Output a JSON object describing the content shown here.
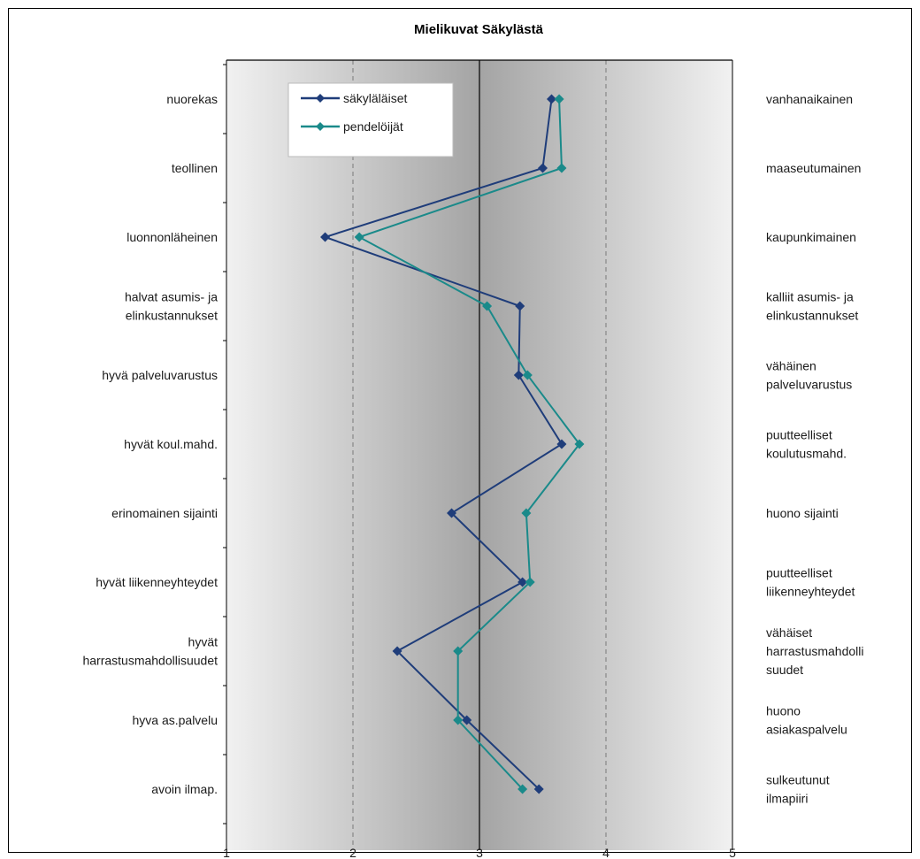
{
  "chart_data": {
    "type": "line",
    "title": "Mielikuvat Säkylästä",
    "xlim": [
      1,
      5
    ],
    "x_ticks": [
      "1",
      "2",
      "3",
      "4",
      "5"
    ],
    "left_labels": [
      [
        "nuorekas"
      ],
      [
        "teollinen"
      ],
      [
        "luonnonläheinen"
      ],
      [
        "halvat asumis- ja",
        "elinkustannukset"
      ],
      [
        "hyvä palveluvarustus"
      ],
      [
        "hyvät koul.mahd."
      ],
      [
        "erinomainen sijainti"
      ],
      [
        "hyvät liikenneyhteydet"
      ],
      [
        "hyvät",
        "harrastusmahdollisuudet"
      ],
      [
        "hyva as.palvelu"
      ],
      [
        "avoin ilmap."
      ]
    ],
    "right_labels": [
      [
        "vanhanaikainen"
      ],
      [
        "maaseutumainen"
      ],
      [
        "kaupunkimainen"
      ],
      [
        "kalliit  asumis-  ja",
        "elinkustannukset"
      ],
      [
        "vähäinen",
        "palveluvarustus"
      ],
      [
        "puutteelliset",
        "koulutusmahd."
      ],
      [
        "huono sijainti"
      ],
      [
        "puutteelliset",
        "liikenneyhteydet"
      ],
      [
        "vähäiset",
        "harrastusmahdolli",
        "suudet"
      ],
      [
        "huono",
        "asiakaspalvelu"
      ],
      [
        "sulkeutunut",
        "ilmapiiri"
      ]
    ],
    "series": [
      {
        "name": "säkyläläiset",
        "color": "#1f3d7a",
        "values": [
          3.57,
          3.5,
          1.78,
          3.32,
          3.31,
          3.65,
          2.78,
          3.34,
          2.35,
          2.9,
          3.47
        ]
      },
      {
        "name": "pendelöijät",
        "color": "#1a8a8a",
        "values": [
          3.63,
          3.65,
          2.05,
          3.06,
          3.38,
          3.79,
          3.37,
          3.4,
          2.83,
          2.83,
          3.34
        ]
      }
    ],
    "reference_lines": [
      2,
      3,
      4
    ],
    "grid": false,
    "legend_position": "top-left"
  }
}
